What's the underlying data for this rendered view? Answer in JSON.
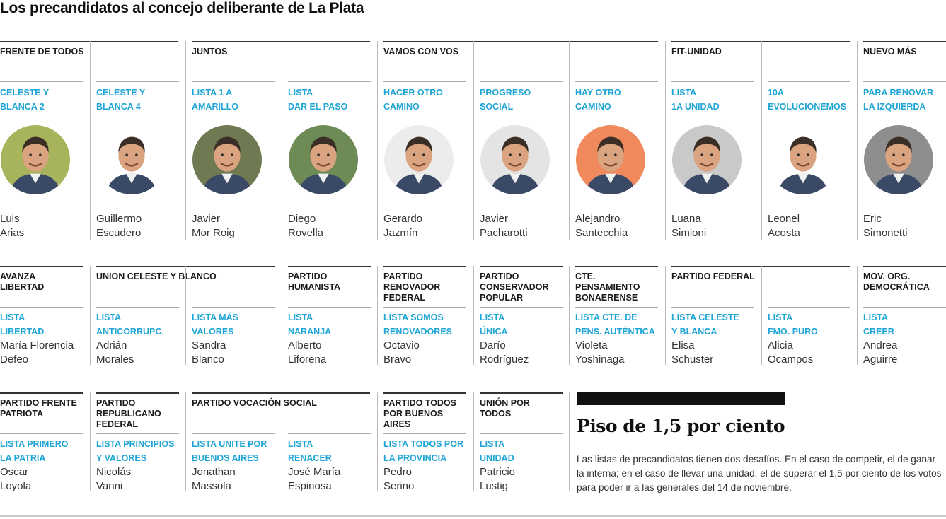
{
  "title": "Los precandidatos al concejo deliberante de La Plata",
  "row1": {
    "parties": [
      "FRENTE DE TODOS",
      "JUNTOS",
      "VAMOS CON VOS",
      "FIT-UNIDAD",
      "NUEVO MÁS"
    ],
    "candidates": [
      {
        "list": "CELESTE Y\nBLANCA 2",
        "first": "Luis",
        "last": "Arias",
        "bg": "#a7b45c"
      },
      {
        "list": "CELESTE Y\nBLANCA 4",
        "first": "Guillermo",
        "last": "Escudero",
        "bg": "#ffffff"
      },
      {
        "list": "LISTA 1 A\nAMARILLO",
        "first": "Javier",
        "last": "Mor Roig",
        "bg": "#6f7a52"
      },
      {
        "list": "LISTA\nDAR EL PASO",
        "first": "Diego",
        "last": "Rovella",
        "bg": "#6e8a55"
      },
      {
        "list": "HACER OTRO\nCAMINO",
        "first": "Gerardo",
        "last": "Jazmín",
        "bg": "#ececec"
      },
      {
        "list": "PROGRESO\nSOCIAL",
        "first": "Javier",
        "last": "Pacharotti",
        "bg": "#e4e4e4"
      },
      {
        "list": "HAY OTRO\nCAMINO",
        "first": "Alejandro",
        "last": "Santecchia",
        "bg": "#f08a5d"
      },
      {
        "list": "LISTA\n1A UNIDAD",
        "first": "Luana",
        "last": "Simioni",
        "bg": "#c9c9c9"
      },
      {
        "list": "10A\nEVOLUCIONEMOS",
        "first": "Leonel",
        "last": "Acosta",
        "bg": "#ffffff"
      },
      {
        "list": "PARA RENOVAR\nLA IZQUIERDA",
        "first": "Eric",
        "last": "Simonetti",
        "bg": "#8e8e8e"
      }
    ]
  },
  "row2": {
    "parties": [
      "AVANZA LIBERTAD",
      "UNION CELESTE Y BLANCO",
      "PARTIDO HUMANISTA",
      "PARTIDO RENOVADOR FEDERAL",
      "PARTIDO CONSERVADOR POPULAR",
      "CTE. PENSAMIENTO BONAERENSE",
      "PARTIDO FEDERAL",
      "MOV. ORG. DEMOCRÁTICA"
    ],
    "candidates": [
      {
        "list": "LISTA\nLIBERTAD",
        "first": "María Florencia",
        "last": "Defeo"
      },
      {
        "list": "LISTA\nANTICORRUPC.",
        "first": "Adrián",
        "last": "Morales"
      },
      {
        "list": "LISTA MÁS\nVALORES",
        "first": "Sandra",
        "last": "Blanco"
      },
      {
        "list": "LISTA\nNARANJA",
        "first": "Alberto",
        "last": "Liforena"
      },
      {
        "list": "LISTA SOMOS\nRENOVADORES",
        "first": "Octavio",
        "last": "Bravo"
      },
      {
        "list": "LISTA\nÚNICA",
        "first": "Darío",
        "last": "Rodríguez"
      },
      {
        "list": "LISTA CTE. DE\nPENS. AUTÉNTICA",
        "first": "Violeta",
        "last": "Yoshinaga"
      },
      {
        "list": "LISTA CELESTE\nY BLANCA",
        "first": "Elisa",
        "last": "Schuster"
      },
      {
        "list": "LISTA\nFMO. PURO",
        "first": "Alicia",
        "last": "Ocampos"
      },
      {
        "list": "LISTA\nCREER",
        "first": "Andrea",
        "last": "Aguirre"
      }
    ]
  },
  "row3": {
    "parties": [
      "PARTIDO FRENTE PATRIOTA",
      "PARTIDO REPUBLICANO FEDERAL",
      "PARTIDO VOCACIÓN SOCIAL",
      "PARTIDO TODOS POR BUENOS AIRES",
      "UNIÓN POR TODOS"
    ],
    "candidates": [
      {
        "list": "LISTA PRIMERO\nLA PATRIA",
        "first": "Oscar",
        "last": "Loyola"
      },
      {
        "list": "LISTA PRINCIPIOS\nY VALORES",
        "first": "Nicolás",
        "last": "Vanni"
      },
      {
        "list": "LISTA UNITE POR\nBUENOS AIRES",
        "first": "Jonathan",
        "last": "Massola"
      },
      {
        "list": "LISTA\nRENACER",
        "first": "José María",
        "last": "Espinosa"
      },
      {
        "list": "LISTA TODOS POR\nLA PROVINCIA",
        "first": "Pedro",
        "last": "Serino"
      },
      {
        "list": "LISTA\nUNIDAD",
        "first": "Patricio",
        "last": "Lustig"
      }
    ]
  },
  "note": {
    "heading": "Piso de 1,5 por ciento",
    "text": "Las listas de precandidatos tienen dos desafíos. En el caso de competir, el de ganar la interna; en el caso de llevar una unidad, el de superar el 1,5 por ciento de los votos para poder ir a las generales del 14 de noviembre."
  }
}
